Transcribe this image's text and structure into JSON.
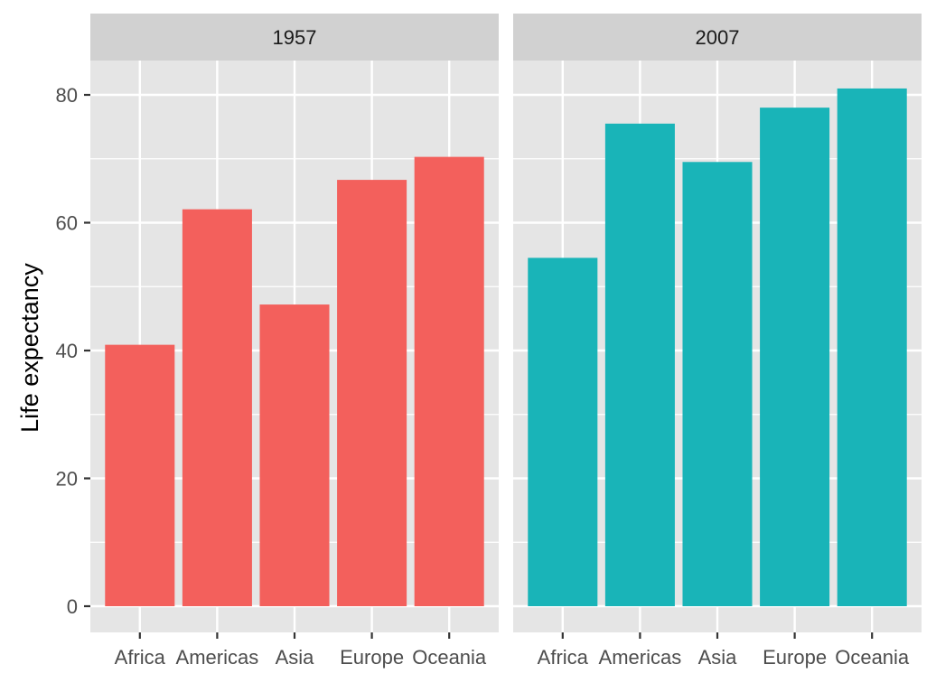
{
  "chart_data": {
    "type": "bar",
    "facet_by": "year",
    "ylabel": "Life expectancy",
    "xlabel": "",
    "ylim": [
      0,
      90
    ],
    "y_ticks": [
      0,
      20,
      40,
      60,
      80
    ],
    "categories": [
      "Africa",
      "Americas",
      "Asia",
      "Europe",
      "Oceania"
    ],
    "grid": true,
    "legend": "none",
    "panels": [
      {
        "label": "1957",
        "color": "#F3605C",
        "values": [
          40.9,
          62.1,
          47.2,
          66.7,
          70.3
        ]
      },
      {
        "label": "2007",
        "color": "#19B4B8",
        "values": [
          54.5,
          75.5,
          69.5,
          78.0,
          81.0
        ]
      }
    ]
  }
}
